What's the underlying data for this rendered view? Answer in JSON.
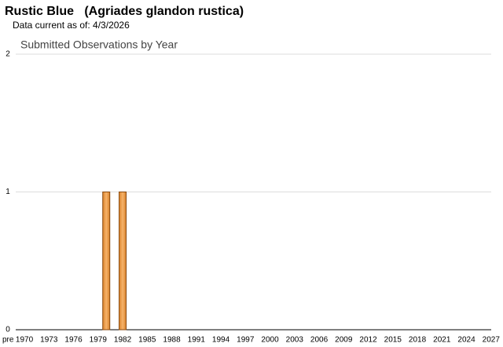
{
  "chart_data": {
    "type": "bar",
    "title": "Rustic Blue   (Agriades glandon rustica)",
    "subtitle": "Data current as of: 4/3/2026",
    "chart_title": "Submitted Observations by Year",
    "categories": [
      "pre",
      null,
      "1970",
      null,
      null,
      "1973",
      null,
      null,
      "1976",
      null,
      null,
      "1979",
      null,
      null,
      "1982",
      null,
      null,
      "1985",
      null,
      null,
      "1988",
      null,
      null,
      "1991",
      null,
      null,
      "1994",
      null,
      null,
      "1997",
      null,
      null,
      "2000",
      null,
      null,
      "2003",
      null,
      null,
      "2006",
      null,
      null,
      "2009",
      null,
      null,
      "2012",
      null,
      null,
      "2015",
      null,
      null,
      "2018",
      null,
      null,
      "2021",
      null,
      null,
      "2024",
      null,
      null,
      "2027"
    ],
    "values": [
      0,
      0,
      0,
      0,
      0,
      0,
      0,
      0,
      0,
      0,
      0,
      0,
      1,
      0,
      1,
      0,
      0,
      0,
      0,
      0,
      0,
      0,
      0,
      0,
      0,
      0,
      0,
      0,
      0,
      0,
      0,
      0,
      0,
      0,
      0,
      0,
      0,
      0,
      0,
      0,
      0,
      0,
      0,
      0,
      0,
      0,
      0,
      0,
      0,
      0,
      0,
      0,
      0,
      0,
      0,
      0,
      0,
      0,
      0,
      0
    ],
    "color": "#f0a04b",
    "ylim": [
      0,
      2
    ],
    "yticks": [
      0,
      1,
      2
    ],
    "grid": true
  }
}
